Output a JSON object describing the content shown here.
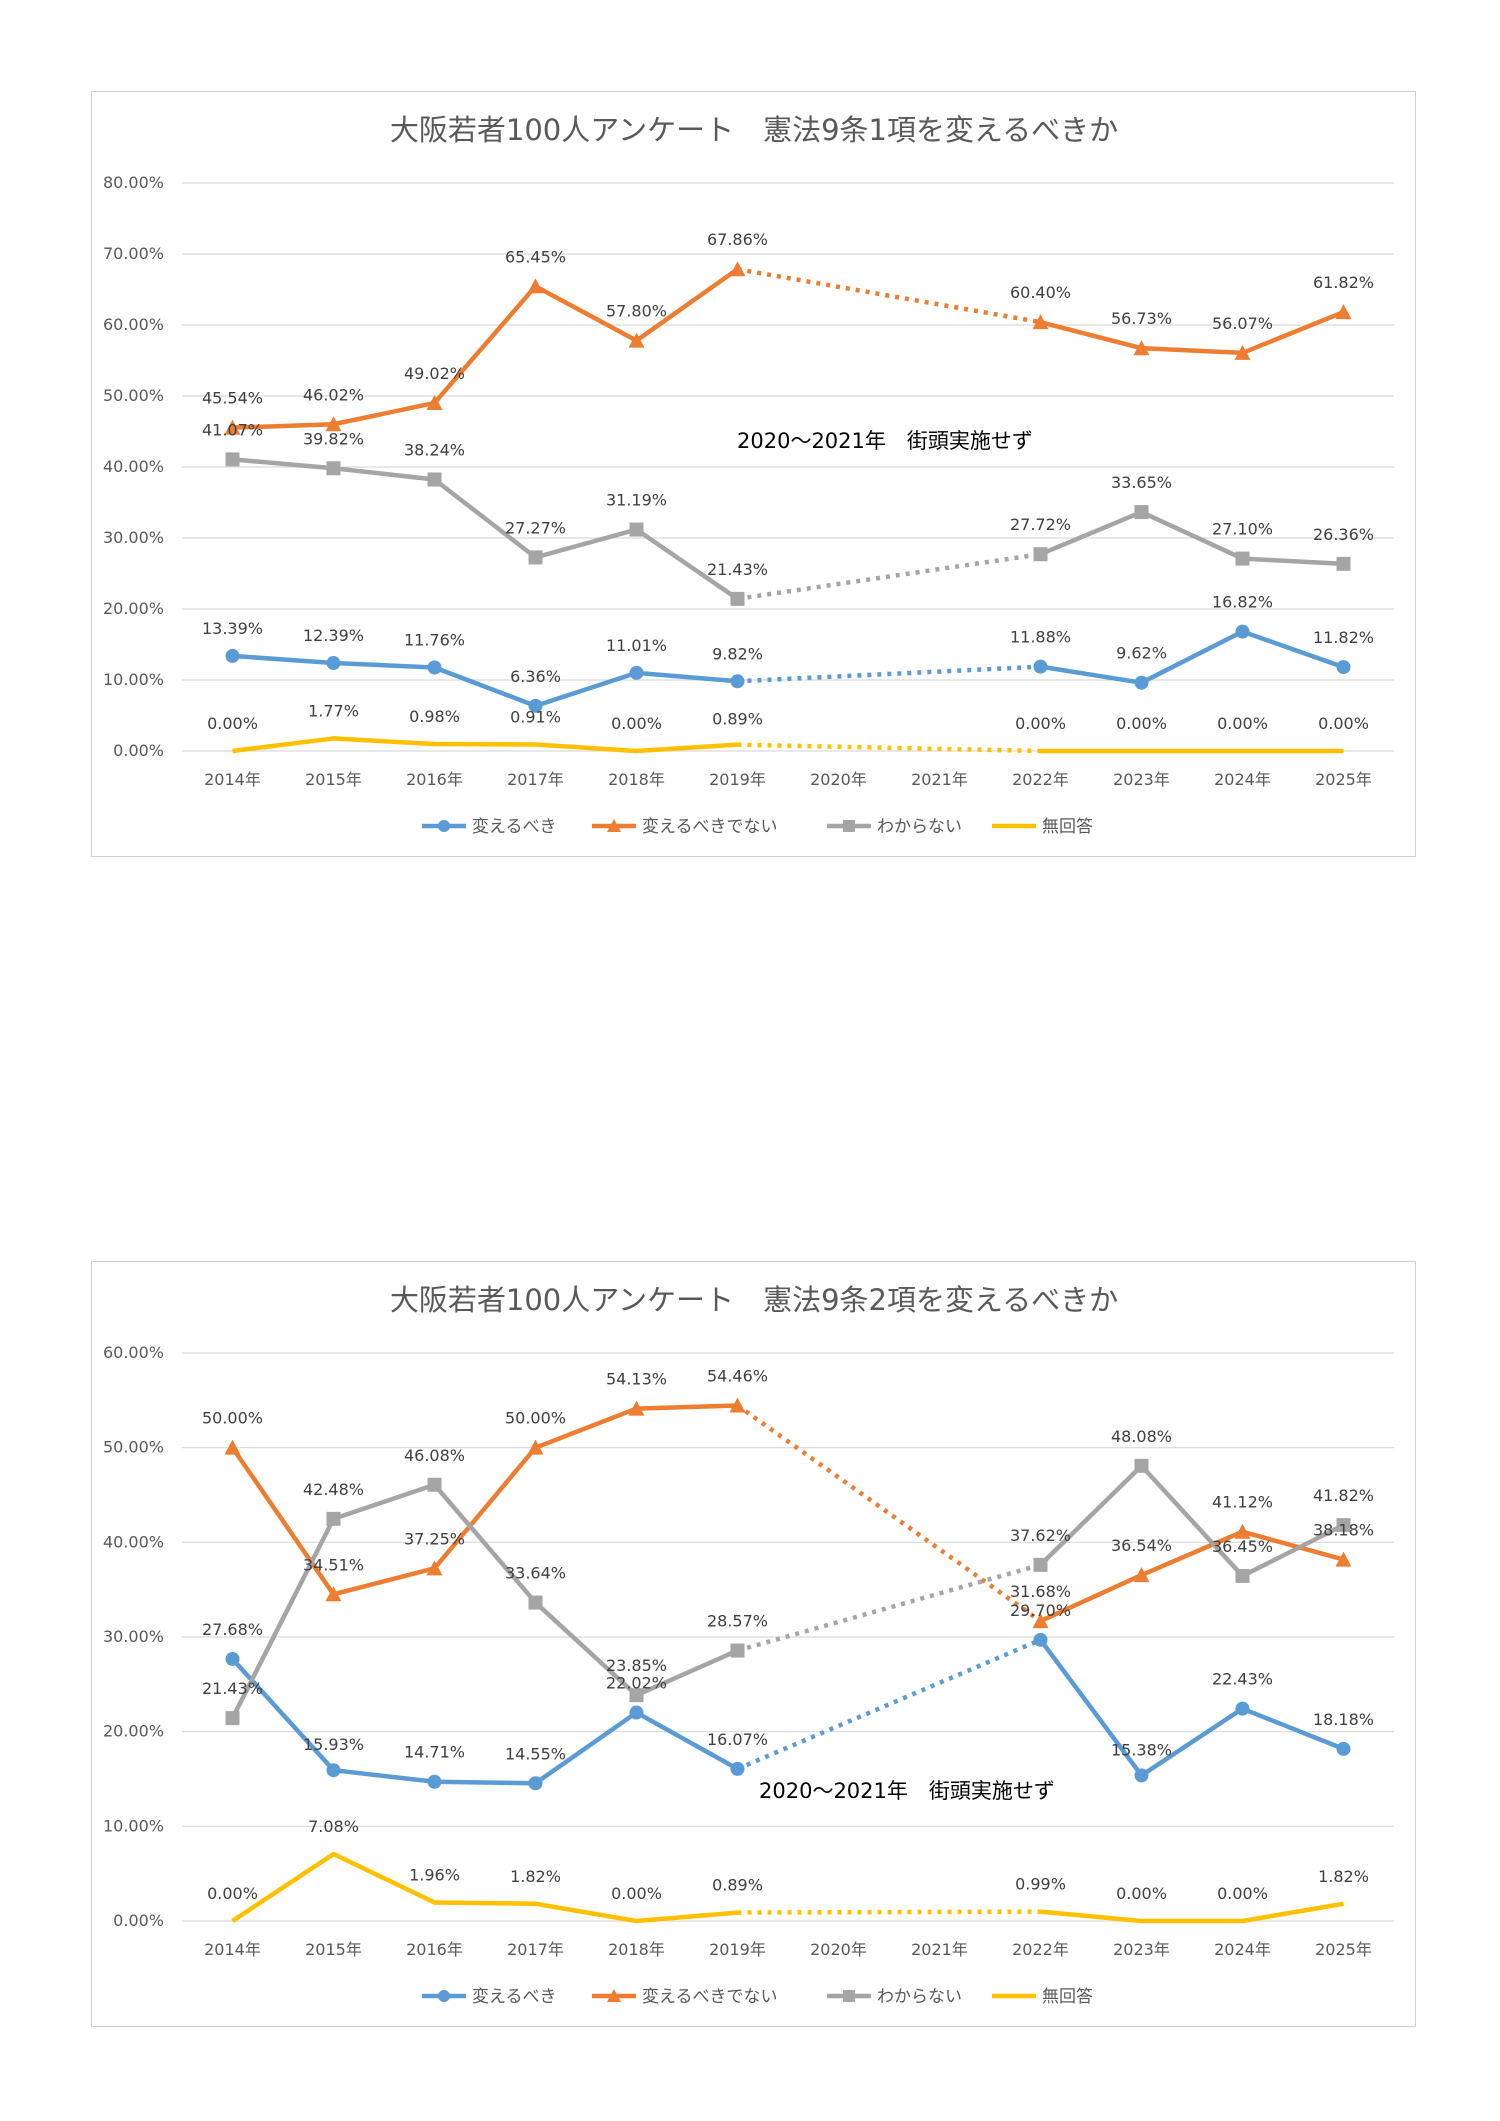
{
  "legend": {
    "s1": "変えるべき",
    "s2": "変えるべきでない",
    "s3": "わからない",
    "s4": "無回答"
  },
  "colors": {
    "s1": "#5b9bd5",
    "s2": "#ed7d31",
    "s3": "#a5a5a5",
    "s4": "#ffc000",
    "grid": "#d9d9d9"
  },
  "chart_data": [
    {
      "type": "line",
      "title": "大阪若者100人アンケート　憲法9条1項を変えるべきか",
      "annotation": "2020～2021年　街頭実施せず",
      "categories": [
        "2014年",
        "2015年",
        "2016年",
        "2017年",
        "2018年",
        "2019年",
        "2020年",
        "2021年",
        "2022年",
        "2023年",
        "2024年",
        "2025年"
      ],
      "ylim": [
        0,
        80
      ],
      "yticks": [
        "0.00%",
        "10.00%",
        "20.00%",
        "30.00%",
        "40.00%",
        "50.00%",
        "60.00%",
        "70.00%",
        "80.00%"
      ],
      "grid": true,
      "legend_position": "bottom",
      "gap_style": "dotted line between 2019年 and 2022年",
      "series": [
        {
          "name": "変えるべき",
          "marker": "circle",
          "values": [
            13.39,
            12.39,
            11.76,
            6.36,
            11.01,
            9.82,
            null,
            null,
            11.88,
            9.62,
            16.82,
            11.82
          ],
          "labels": [
            "13.39%",
            "12.39%",
            "11.76%",
            "6.36%",
            "11.01%",
            "9.82%",
            "",
            "",
            "11.88%",
            "9.62%",
            "16.82%",
            "11.82%"
          ]
        },
        {
          "name": "変えるべきでない",
          "marker": "triangle",
          "values": [
            45.54,
            46.02,
            49.02,
            65.45,
            57.8,
            67.86,
            null,
            null,
            60.4,
            56.73,
            56.07,
            61.82
          ],
          "labels": [
            "45.54%",
            "46.02%",
            "49.02%",
            "65.45%",
            "57.80%",
            "67.86%",
            "",
            "",
            "60.40%",
            "56.73%",
            "56.07%",
            "61.82%"
          ]
        },
        {
          "name": "わからない",
          "marker": "square",
          "values": [
            41.07,
            39.82,
            38.24,
            27.27,
            31.19,
            21.43,
            null,
            null,
            27.72,
            33.65,
            27.1,
            26.36
          ],
          "labels": [
            "41.07%",
            "39.82%",
            "38.24%",
            "27.27%",
            "31.19%",
            "21.43%",
            "",
            "",
            "27.72%",
            "33.65%",
            "27.10%",
            "26.36%"
          ]
        },
        {
          "name": "無回答",
          "marker": "none",
          "values": [
            0.0,
            1.77,
            0.98,
            0.91,
            0.0,
            0.89,
            null,
            null,
            0.0,
            0.0,
            0.0,
            0.0
          ],
          "labels": [
            "0.00%",
            "1.77%",
            "0.98%",
            "0.91%",
            "0.00%",
            "0.89%",
            "",
            "",
            "0.00%",
            "0.00%",
            "0.00%",
            "0.00%"
          ]
        }
      ]
    },
    {
      "type": "line",
      "title": "大阪若者100人アンケート　憲法9条2項を変えるべきか",
      "annotation": "2020～2021年　街頭実施せず",
      "categories": [
        "2014年",
        "2015年",
        "2016年",
        "2017年",
        "2018年",
        "2019年",
        "2020年",
        "2021年",
        "2022年",
        "2023年",
        "2024年",
        "2025年"
      ],
      "ylim": [
        0,
        60
      ],
      "yticks": [
        "0.00%",
        "10.00%",
        "20.00%",
        "30.00%",
        "40.00%",
        "50.00%",
        "60.00%"
      ],
      "grid": true,
      "legend_position": "bottom",
      "gap_style": "dotted line between 2019年 and 2022年",
      "series": [
        {
          "name": "変えるべき",
          "marker": "circle",
          "values": [
            27.68,
            15.93,
            14.71,
            14.55,
            22.02,
            16.07,
            null,
            null,
            29.7,
            15.38,
            22.43,
            18.18
          ],
          "labels": [
            "27.68%",
            "15.93%",
            "14.71%",
            "14.55%",
            "22.02%",
            "16.07%",
            "",
            "",
            "29.70%",
            "15.38%",
            "22.43%",
            "18.18%"
          ]
        },
        {
          "name": "変えるべきでない",
          "marker": "triangle",
          "values": [
            50.0,
            34.51,
            37.25,
            50.0,
            54.13,
            54.46,
            null,
            null,
            31.68,
            36.54,
            41.12,
            38.18
          ],
          "labels": [
            "50.00%",
            "34.51%",
            "37.25%",
            "50.00%",
            "54.13%",
            "54.46%",
            "",
            "",
            "31.68%",
            "36.54%",
            "41.12%",
            "38.18%"
          ]
        },
        {
          "name": "わからない",
          "marker": "square",
          "values": [
            21.43,
            42.48,
            46.08,
            33.64,
            23.85,
            28.57,
            null,
            null,
            37.62,
            48.08,
            36.45,
            41.82
          ],
          "labels": [
            "21.43%",
            "42.48%",
            "46.08%",
            "33.64%",
            "23.85%",
            "28.57%",
            "",
            "",
            "37.62%",
            "48.08%",
            "36.45%",
            "41.82%"
          ]
        },
        {
          "name": "無回答",
          "marker": "none",
          "values": [
            0.0,
            7.08,
            1.96,
            1.82,
            0.0,
            0.89,
            null,
            null,
            0.99,
            0.0,
            0.0,
            1.82
          ],
          "labels": [
            "0.00%",
            "7.08%",
            "1.96%",
            "1.82%",
            "0.00%",
            "0.89%",
            "",
            "",
            "0.99%",
            "0.00%",
            "0.00%",
            "1.82%"
          ]
        }
      ]
    }
  ]
}
